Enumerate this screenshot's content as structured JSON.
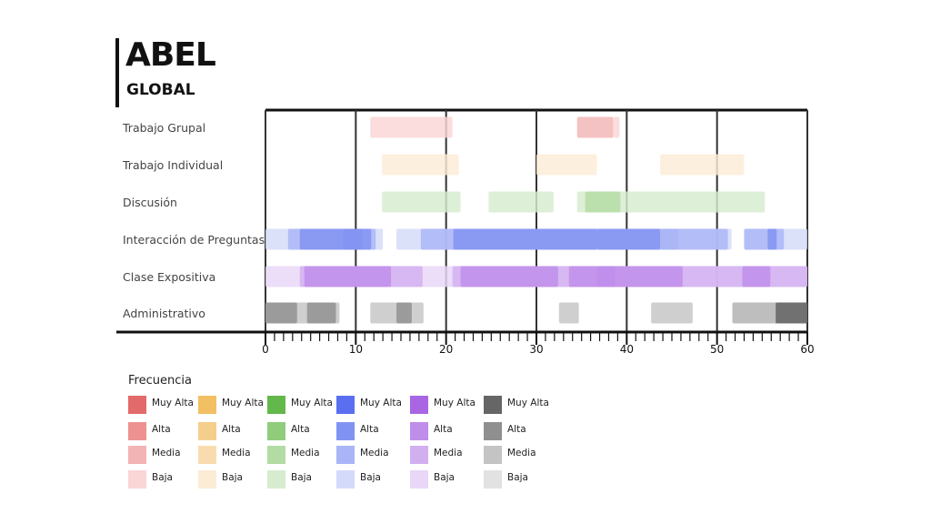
{
  "header": {
    "title": "ABEL",
    "subtitle": "GLOBAL"
  },
  "legend": {
    "title": "Frecuencia",
    "levels": [
      "Muy Alta",
      "Alta",
      "Media",
      "Baja"
    ],
    "colors": [
      [
        "#e36a6a",
        "#ed9191",
        "#f2b4b4",
        "#fad6d6"
      ],
      [
        "#f2bf63",
        "#f5ce8e",
        "#f8dcb0",
        "#fcecd6"
      ],
      [
        "#62b84a",
        "#8fcc7b",
        "#b3dca4",
        "#d7ecce"
      ],
      [
        "#5a6ff0",
        "#8193f2",
        "#a9b5f6",
        "#d4daf9"
      ],
      [
        "#a866e3",
        "#bf8dea",
        "#d2b0f0",
        "#e8d7f7"
      ],
      [
        "#666666",
        "#8f8f8f",
        "#c4c4c4",
        "#e2e2e2"
      ]
    ]
  },
  "chart_data": {
    "type": "gantt",
    "x": {
      "min": 0,
      "max": 60,
      "ticks": [
        0,
        10,
        20,
        30,
        40,
        50,
        60
      ]
    },
    "grid": "vertical lines every 10",
    "categories": [
      "Trabajo Grupal",
      "Trabajo Individual",
      "Discusión",
      "Interacción de Preguntas",
      "Clase Expositiva",
      "Administrativo"
    ],
    "series": [
      {
        "category": "Trabajo Grupal",
        "palette": 0,
        "intervals": [
          {
            "start": 11.6,
            "end": 20.7,
            "level": "Baja"
          },
          {
            "start": 34.5,
            "end": 38.5,
            "level": "Media"
          },
          {
            "start": 38.5,
            "end": 39.2,
            "level": "Baja"
          }
        ]
      },
      {
        "category": "Trabajo Individual",
        "palette": 1,
        "intervals": [
          {
            "start": 12.9,
            "end": 21.4,
            "level": "Baja"
          },
          {
            "start": 30.0,
            "end": 36.7,
            "level": "Baja"
          },
          {
            "start": 43.7,
            "end": 53.0,
            "level": "Baja"
          }
        ]
      },
      {
        "category": "Discusión",
        "palette": 2,
        "intervals": [
          {
            "start": 12.9,
            "end": 21.6,
            "level": "Baja"
          },
          {
            "start": 24.7,
            "end": 31.9,
            "level": "Baja"
          },
          {
            "start": 34.5,
            "end": 55.3,
            "level": "Baja"
          },
          {
            "start": 35.4,
            "end": 39.3,
            "level": "Media"
          }
        ]
      },
      {
        "category": "Interacción de Preguntas",
        "palette": 3,
        "intervals": [
          {
            "start": 0.0,
            "end": 13.0,
            "level": "Baja"
          },
          {
            "start": 2.5,
            "end": 12.2,
            "level": "Media"
          },
          {
            "start": 3.8,
            "end": 11.7,
            "level": "Alta"
          },
          {
            "start": 8.6,
            "end": 10.7,
            "level": "Alta"
          },
          {
            "start": 14.5,
            "end": 51.6,
            "level": "Baja"
          },
          {
            "start": 17.2,
            "end": 51.2,
            "level": "Media"
          },
          {
            "start": 20.8,
            "end": 36.7,
            "level": "Alta"
          },
          {
            "start": 36.7,
            "end": 43.7,
            "level": "Alta"
          },
          {
            "start": 43.7,
            "end": 45.7,
            "level": "Media"
          },
          {
            "start": 53.0,
            "end": 60.0,
            "level": "Baja"
          },
          {
            "start": 53.0,
            "end": 57.4,
            "level": "Media"
          },
          {
            "start": 55.6,
            "end": 56.6,
            "level": "Alta"
          }
        ]
      },
      {
        "category": "Clase Expositiva",
        "palette": 4,
        "intervals": [
          {
            "start": 0.0,
            "end": 60.0,
            "level": "Baja"
          },
          {
            "start": 3.8,
            "end": 17.4,
            "level": "Media"
          },
          {
            "start": 4.3,
            "end": 13.9,
            "level": "Alta"
          },
          {
            "start": 20.7,
            "end": 60.0,
            "level": "Media"
          },
          {
            "start": 21.6,
            "end": 32.4,
            "level": "Alta"
          },
          {
            "start": 33.6,
            "end": 46.2,
            "level": "Alta"
          },
          {
            "start": 36.7,
            "end": 38.7,
            "level": "Alta"
          },
          {
            "start": 52.8,
            "end": 55.9,
            "level": "Alta"
          }
        ]
      },
      {
        "category": "Administrativo",
        "palette": 5,
        "intervals": [
          {
            "start": 0.0,
            "end": 8.2,
            "level": "Media"
          },
          {
            "start": 0.0,
            "end": 3.5,
            "level": "Alta"
          },
          {
            "start": 4.6,
            "end": 7.8,
            "level": "Alta"
          },
          {
            "start": 11.6,
            "end": 17.5,
            "level": "Media"
          },
          {
            "start": 14.5,
            "end": 16.2,
            "level": "Alta"
          },
          {
            "start": 32.5,
            "end": 34.7,
            "level": "Media"
          },
          {
            "start": 42.7,
            "end": 47.3,
            "level": "Media"
          },
          {
            "start": 51.7,
            "end": 60.0,
            "level": "Alta"
          },
          {
            "start": 51.7,
            "end": 56.5,
            "level": "Media"
          },
          {
            "start": 56.5,
            "end": 60.0,
            "level": "Muy Alta"
          }
        ]
      }
    ]
  }
}
